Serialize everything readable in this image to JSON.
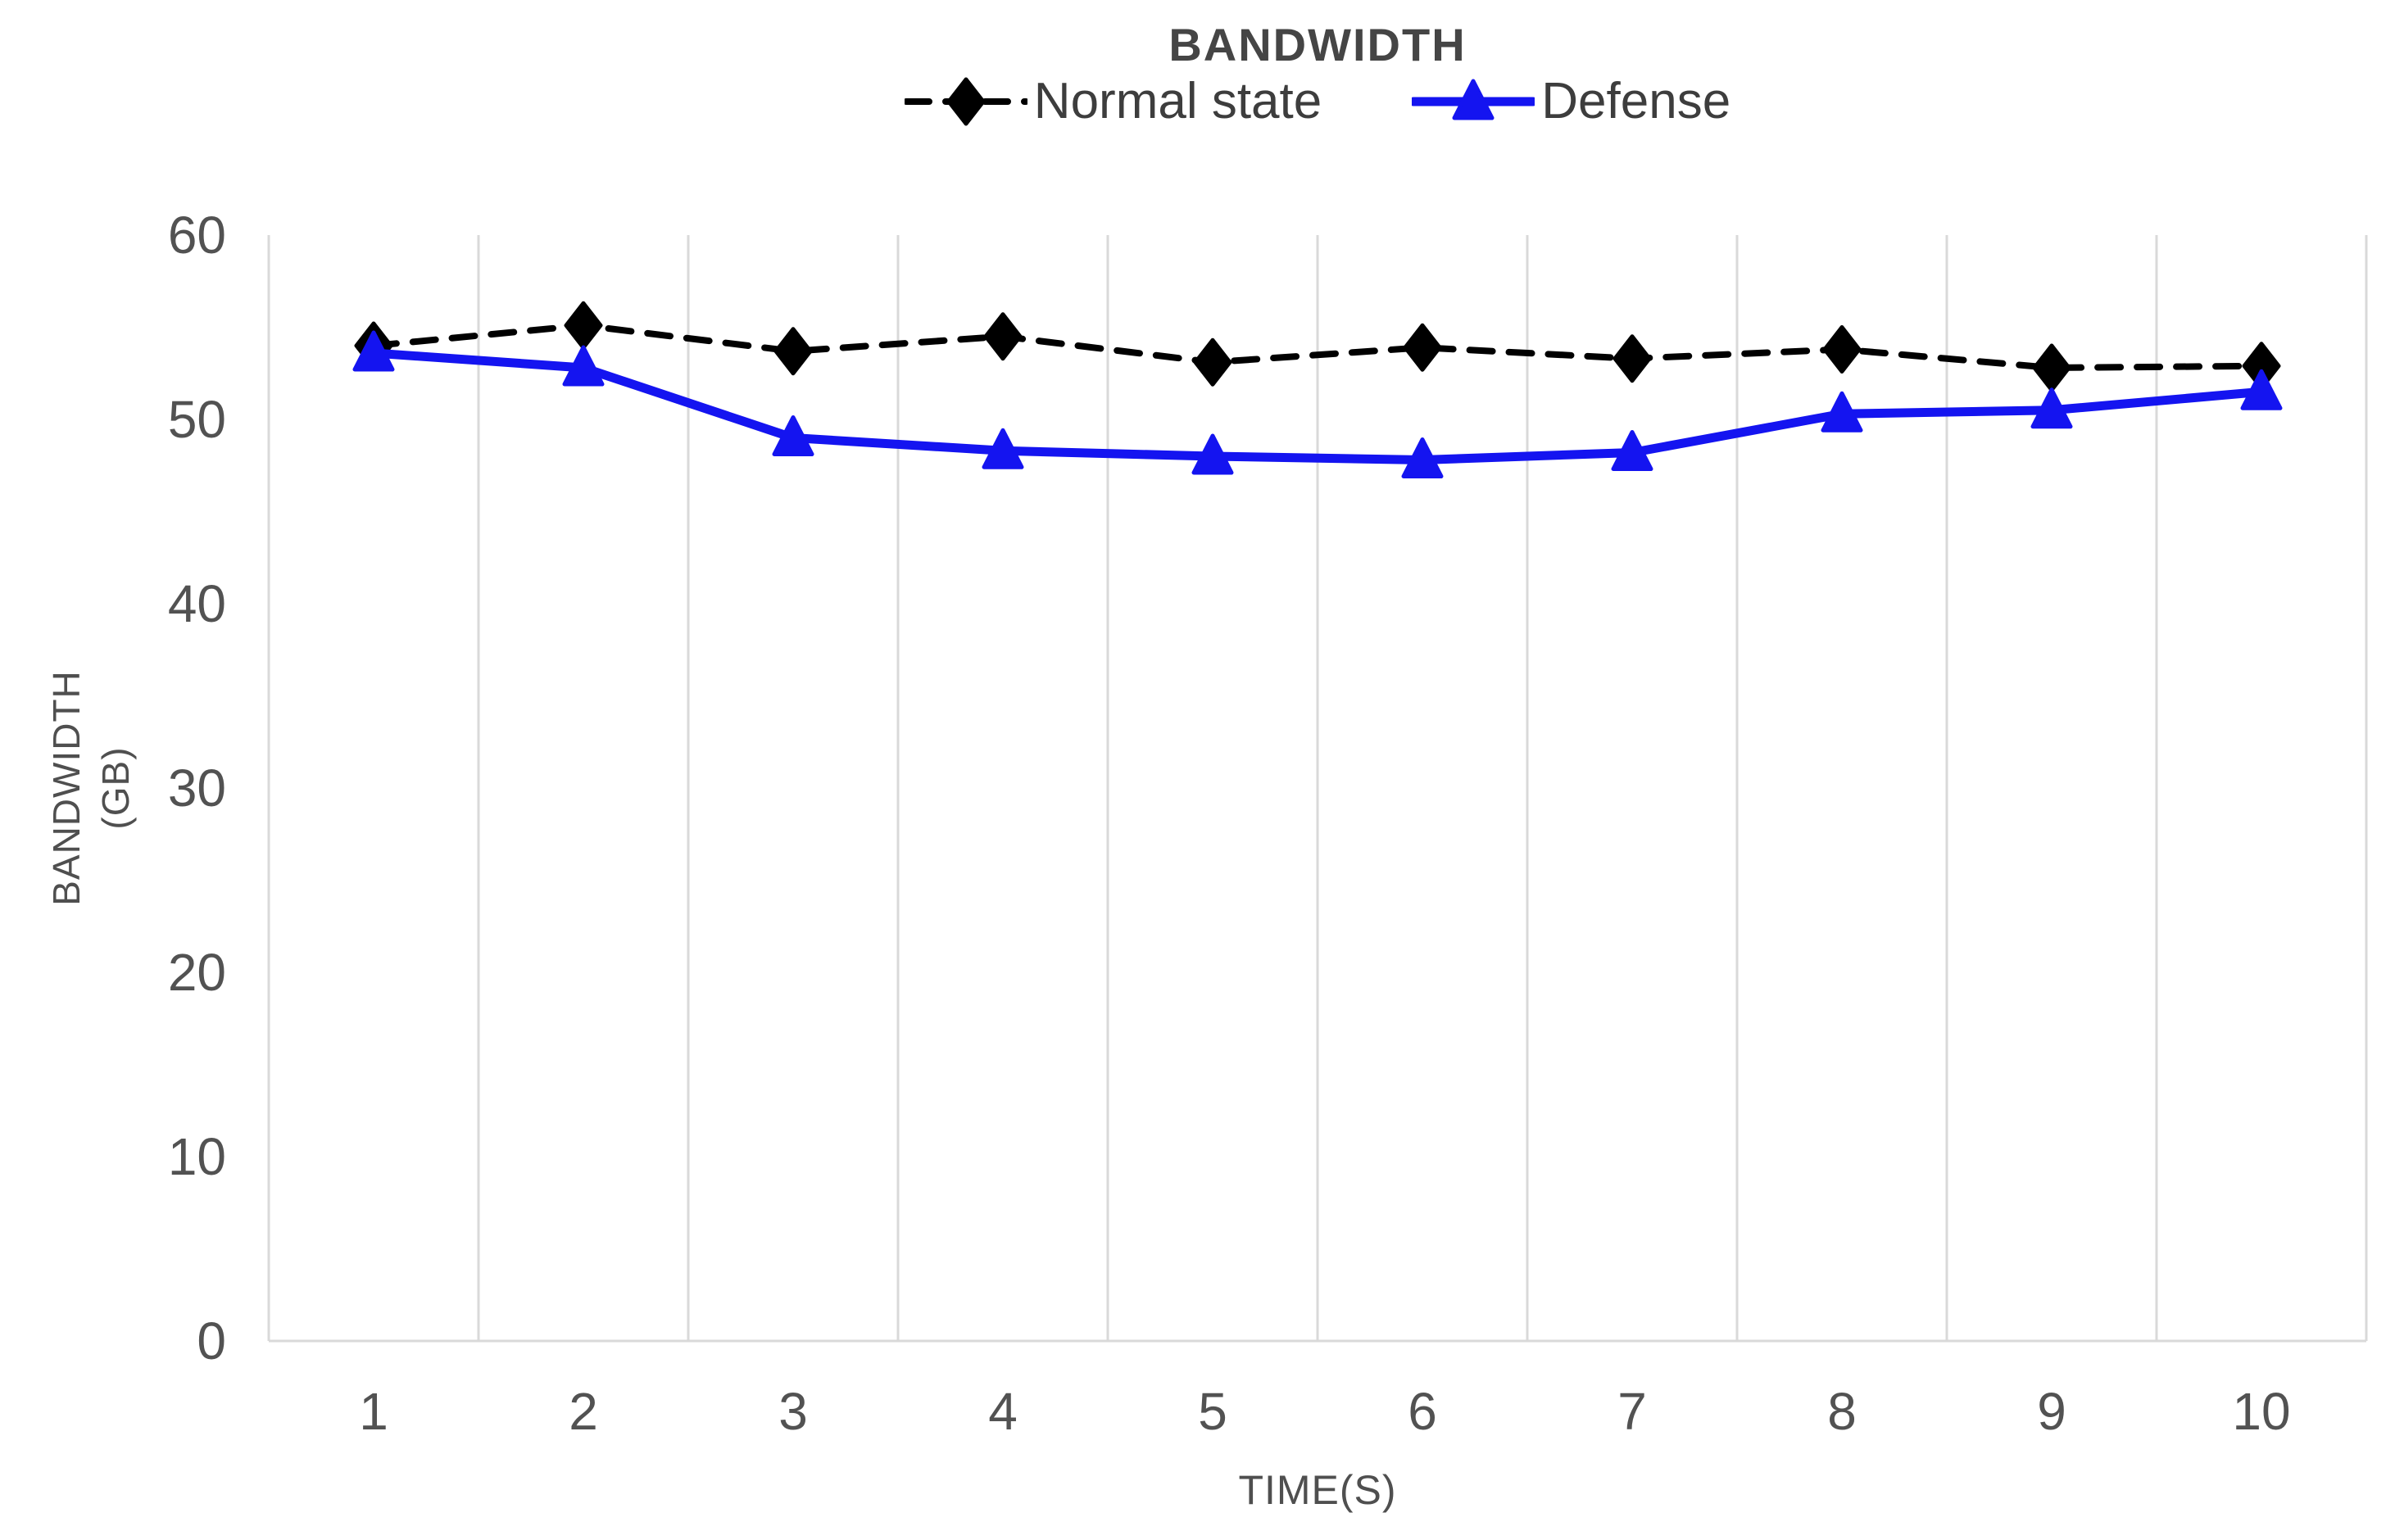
{
  "chart_data": {
    "type": "line",
    "title": "BANDWIDTH",
    "xlabel": "TIME(S)",
    "ylabel": "BANDWIDTH (GB)",
    "ylabel_lines": [
      "BANDWIDTH",
      "(GB)"
    ],
    "x": [
      1,
      2,
      3,
      4,
      5,
      6,
      7,
      8,
      9,
      10
    ],
    "series": [
      {
        "name": "Normal state",
        "color": "#000000",
        "marker": "diamond",
        "line": "dashed",
        "values": [
          54.0,
          55.1,
          53.7,
          54.5,
          53.1,
          53.9,
          53.3,
          53.8,
          52.8,
          52.9
        ]
      },
      {
        "name": "Defense",
        "color": "#1414f0",
        "marker": "triangle",
        "line": "solid",
        "values": [
          53.6,
          52.8,
          49.0,
          48.3,
          48.0,
          47.8,
          48.2,
          50.3,
          50.5,
          51.5
        ]
      }
    ],
    "ylim": [
      0,
      60
    ],
    "yticks": [
      0,
      10,
      20,
      30,
      40,
      50,
      60
    ],
    "grid": "vertical-only",
    "legend_position": "top-center"
  },
  "styles": {
    "grid_color": "#d9d9d9",
    "axis_text_color": "#525252",
    "title_color": "#454545",
    "legend_text_color": "#3d3d3d",
    "background": "#ffffff"
  }
}
